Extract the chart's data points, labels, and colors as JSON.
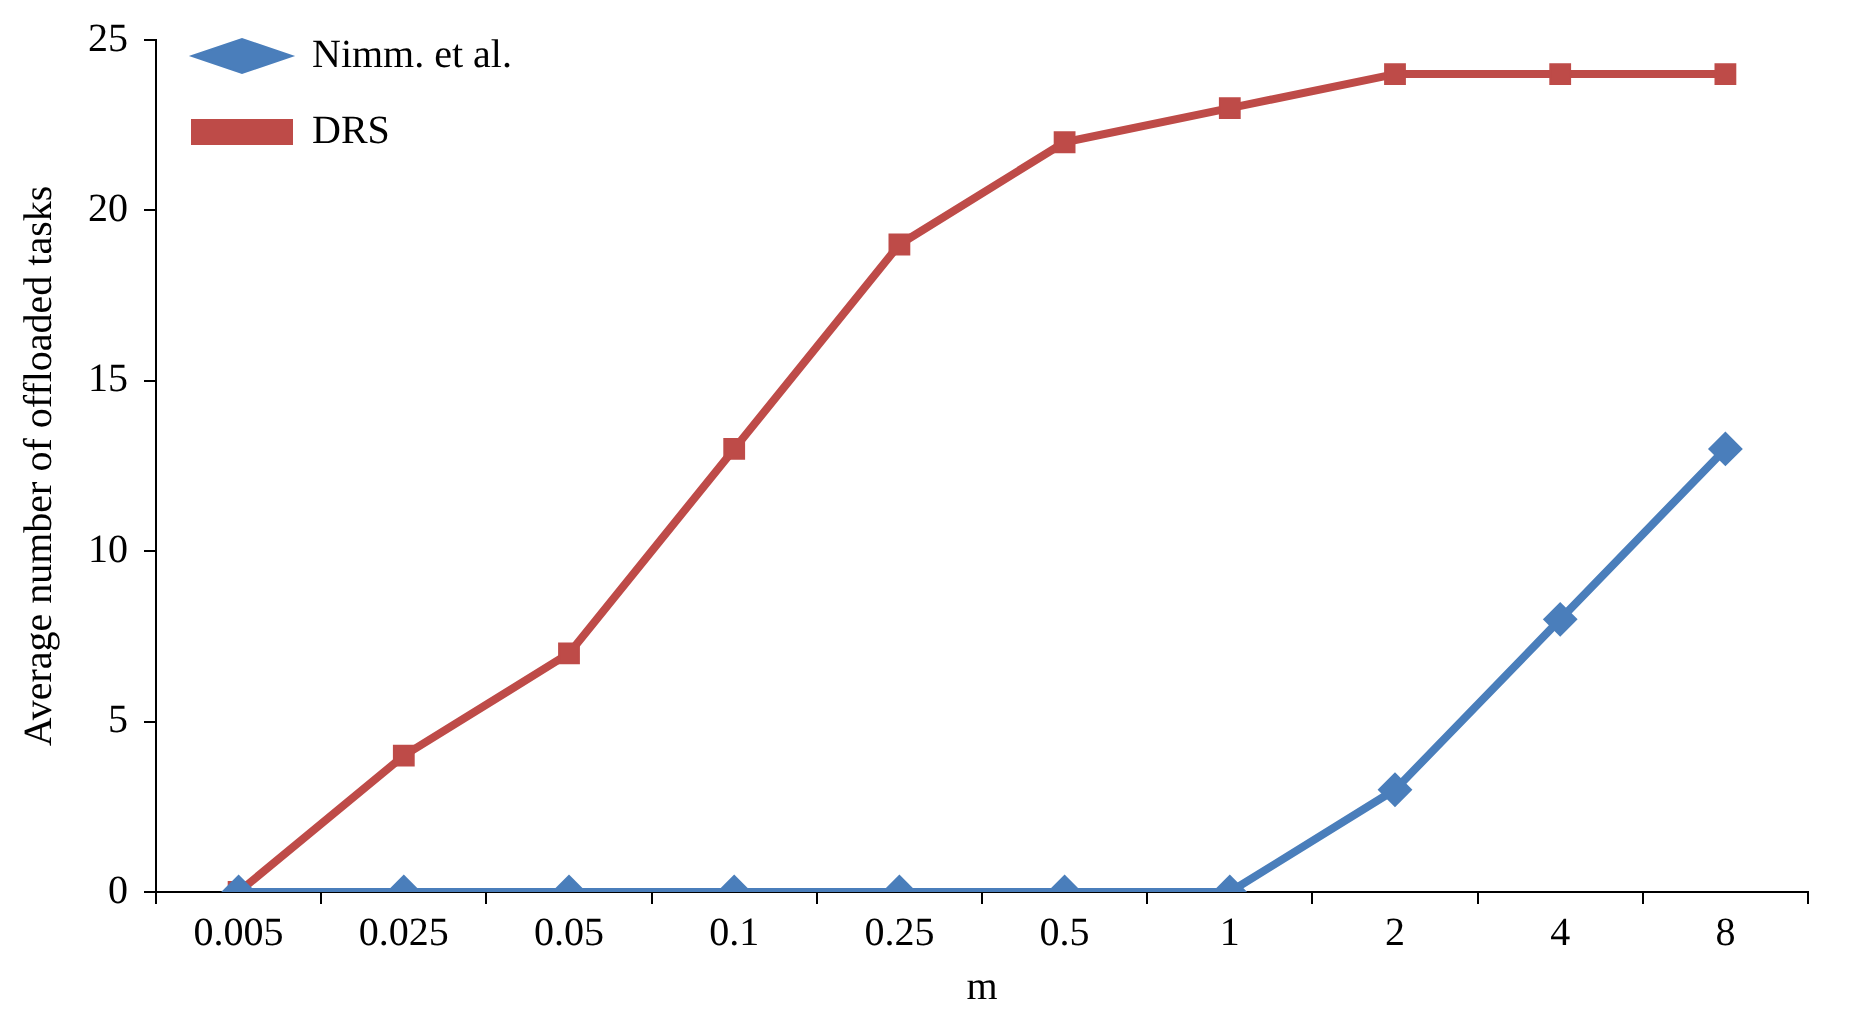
{
  "chart_data": {
    "type": "line",
    "xlabel": "m",
    "ylabel": "Average number of offloaded tasks",
    "categories": [
      "0.005",
      "0.025",
      "0.05",
      "0.1",
      "0.25",
      "0.5",
      "1",
      "2",
      "4",
      "8"
    ],
    "series": [
      {
        "name": "Nimm. et al.",
        "color": "#4a7ebb",
        "marker": "diamond",
        "values": [
          0,
          0,
          0,
          0,
          0,
          0,
          0,
          3,
          8,
          13
        ]
      },
      {
        "name": "DRS",
        "color": "#be4b48",
        "marker": "square",
        "values": [
          0,
          4,
          7,
          13,
          19,
          22,
          23,
          24,
          24,
          24
        ]
      }
    ],
    "ylim": [
      0,
      25
    ],
    "yticks": [
      0,
      5,
      10,
      15,
      20,
      25
    ],
    "grid": false,
    "legend": "top left",
    "line_style": "solid"
  }
}
